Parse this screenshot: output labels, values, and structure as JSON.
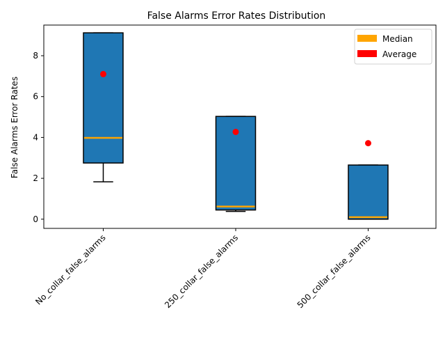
{
  "chart_data": {
    "type": "box",
    "title": "False Alarms Error Rates Distribution",
    "xlabel": "",
    "ylabel": "False Alarms Error Rates",
    "ylim": [
      -0.45,
      9.5
    ],
    "yticks": [
      0,
      2,
      4,
      6,
      8
    ],
    "grid": false,
    "legend_position": "top-right",
    "categories": [
      "No_collar_false_alarms",
      "250_collar_false_alarms",
      "500_collar_false_alarms"
    ],
    "boxes": [
      {
        "category": "No_collar_false_alarms",
        "whisker_low": 1.83,
        "q1": 2.75,
        "median": 3.98,
        "q3": 9.12,
        "whisker_high": 9.12,
        "mean": 7.1
      },
      {
        "category": "250_collar_false_alarms",
        "whisker_low": 0.38,
        "q1": 0.45,
        "median": 0.62,
        "q3": 5.03,
        "whisker_high": 5.03,
        "mean": 4.27
      },
      {
        "category": "500_collar_false_alarms",
        "whisker_low": 0.0,
        "q1": 0.0,
        "median": 0.1,
        "q3": 2.65,
        "whisker_high": 2.65,
        "mean": 3.72
      }
    ],
    "legend": [
      {
        "label": "Median",
        "color": "#ffa500"
      },
      {
        "label": "Average",
        "color": "#ff0000"
      }
    ],
    "colors": {
      "box_fill": "#1f77b4",
      "median": "#ffa500",
      "mean": "#ff0000",
      "edge": "#000000"
    }
  }
}
